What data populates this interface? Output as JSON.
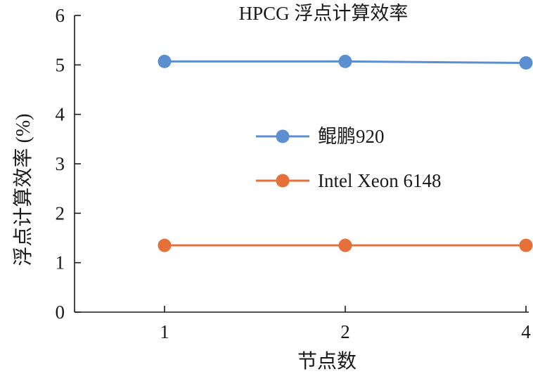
{
  "chart_data": {
    "type": "line",
    "title": "HPCG 浮点计算效率",
    "xlabel": "节点数",
    "ylabel": "浮点计算效率 (%)",
    "x": [
      "1",
      "2",
      "4"
    ],
    "ylim": [
      0,
      6
    ],
    "yticks": [
      0,
      1,
      2,
      3,
      4,
      5,
      6
    ],
    "grid": false,
    "legend_position": "center-right",
    "series": [
      {
        "name": "鲲鹏920",
        "values": [
          5.07,
          5.07,
          5.04
        ],
        "color": "#5b8fd0"
      },
      {
        "name": "Intel Xeon 6148",
        "values": [
          1.35,
          1.35,
          1.35
        ],
        "color": "#e6703a"
      }
    ]
  }
}
